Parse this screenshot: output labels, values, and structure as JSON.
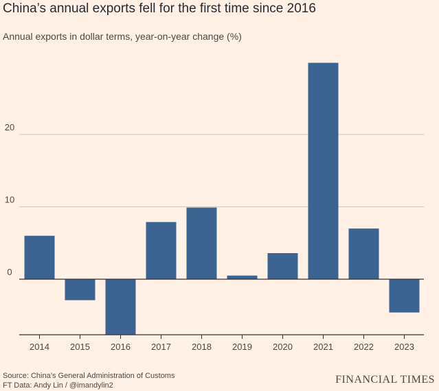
{
  "title": "China’s annual exports fell for the first time since 2016",
  "subtitle": "Annual exports in dollar terms, year-on-year change (%)",
  "source_line1": "Source: China’s General Administration of Customs",
  "source_line2": "FT Data: Andy Lin / @imandylin2",
  "brand": "FINANCIAL TIMES",
  "colors": {
    "background": "#FFF1E5",
    "bar": "#3C6493",
    "grid": "#CFC5BC",
    "axis": "#33302E"
  },
  "chart_data": {
    "type": "bar",
    "categories": [
      "2014",
      "2015",
      "2016",
      "2017",
      "2018",
      "2019",
      "2020",
      "2021",
      "2022",
      "2023"
    ],
    "values": [
      6.0,
      -2.9,
      -7.7,
      7.9,
      9.9,
      0.5,
      3.6,
      29.9,
      7.0,
      -4.6
    ],
    "ylabel": "Annual exports in dollar terms, year-on-year change (%)",
    "yticks": [
      0,
      10,
      20
    ],
    "ylim": [
      -7.7,
      30
    ],
    "grid": true
  }
}
